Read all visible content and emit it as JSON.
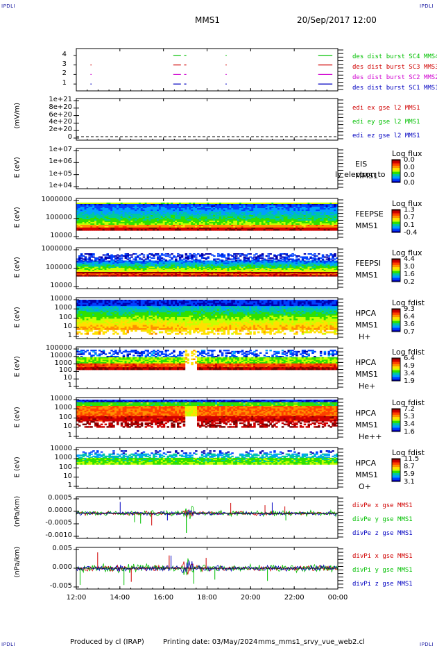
{
  "corners": {
    "tl": "IPDLI",
    "tr": "IPDLI",
    "bl": "IPDLI",
    "br": "IPDLI"
  },
  "header": {
    "spacecraft": "MMS1",
    "datetime": "20/Sep/2017 12:00"
  },
  "footer": {
    "produced": "Produced by cl (IRAP)",
    "printed": "Printing date: 03/May/2024",
    "script": "mms_mms1_srvy_vue_web2.cl"
  },
  "x_axis": {
    "ticks": [
      "12:00",
      "14:00",
      "16:00",
      "18:00",
      "20:00",
      "22:00",
      "00:00"
    ],
    "range_hours": [
      12,
      24
    ]
  },
  "colorscale": [
    "#7a0000",
    "#d00000",
    "#ff4000",
    "#ff9000",
    "#ffe000",
    "#c8ff00",
    "#30e000",
    "#00c8a0",
    "#00a0ff",
    "#0040ff",
    "#0000b0"
  ],
  "chart_data": [
    {
      "type": "scatter",
      "id": "burst",
      "ylabel": "",
      "ytick_labels": [
        "4",
        "3",
        "2",
        "1"
      ],
      "ylim": [
        0.5,
        4.5
      ],
      "series": [
        {
          "name": "des dist burst SC1 MMS1",
          "color": "#0000c0",
          "y": 1,
          "segments": [
            [
              12.65,
              12.7
            ],
            [
              16.45,
              16.8
            ],
            [
              16.95,
              17.05
            ],
            [
              18.85,
              18.9
            ],
            [
              23.1,
              23.75
            ]
          ]
        },
        {
          "name": "des dist burst SC2 MMS2",
          "color": "#d000d0",
          "y": 2,
          "segments": [
            [
              12.65,
              12.7
            ],
            [
              16.45,
              16.8
            ],
            [
              16.95,
              17.05
            ],
            [
              18.85,
              18.9
            ],
            [
              23.1,
              23.75
            ]
          ]
        },
        {
          "name": "des dist burst SC3 MMS3",
          "color": "#d00000",
          "y": 3,
          "segments": [
            [
              12.65,
              12.7
            ],
            [
              16.45,
              16.8
            ],
            [
              16.95,
              17.05
            ],
            [
              18.85,
              18.9
            ],
            [
              23.1,
              23.75
            ]
          ]
        },
        {
          "name": "des dist burst SC4 MMS4",
          "color": "#00c000",
          "y": 4,
          "segments": [
            [
              16.45,
              16.8
            ],
            [
              16.95,
              17.05
            ],
            [
              18.85,
              18.9
            ],
            [
              23.1,
              23.75
            ]
          ]
        }
      ]
    },
    {
      "type": "line",
      "id": "edi",
      "ylabel": "(mV/m)",
      "ytick_labels": [
        "1e+21",
        "8e+20",
        "6e+20",
        "4e+20",
        "2e+20",
        "0"
      ],
      "ylim": [
        0,
        1e+21
      ],
      "series": [
        {
          "name": "edi ex gse l2 MMS1",
          "color": "#d00000"
        },
        {
          "name": "edi ey gse l2 MMS1",
          "color": "#00c000"
        },
        {
          "name": "edi ez gse l2 MMS1",
          "color": "#0000c0"
        }
      ],
      "zero_line": true
    },
    {
      "type": "heatmap",
      "id": "eis",
      "ylabel": "E (eV)",
      "ytick_labels": [
        "1e+07",
        "1e+06",
        "1e+05",
        "1e+04"
      ],
      "ylim": [
        10000.0,
        10000000.0
      ],
      "instrument": [
        "EIS",
        "MMS1"
      ],
      "overlay_text": "ly electron to",
      "colorbar": {
        "title": "Log flux",
        "values": [
          "0.0",
          "0.0",
          "0.0",
          "0.0"
        ]
      },
      "empty": true
    },
    {
      "type": "heatmap",
      "id": "feepse",
      "ylabel": "E (eV)",
      "ytick_labels": [
        "1000000",
        "100000",
        "10000"
      ],
      "ylim": [
        10000,
        1000000
      ],
      "instrument": [
        "FEEPSE",
        "MMS1"
      ],
      "colorbar": {
        "title": "Log flux",
        "values": [
          "1.3",
          "0.7",
          "0.1",
          "-0.4"
        ]
      }
    },
    {
      "type": "heatmap",
      "id": "feepsi",
      "ylabel": "E (eV)",
      "ytick_labels": [
        "1000000",
        "100000",
        "10000"
      ],
      "ylim": [
        10000,
        1000000
      ],
      "instrument": [
        "FEEPSI",
        "MMS1"
      ],
      "colorbar": {
        "title": "Log flux",
        "values": [
          "4.4",
          "3.0",
          "1.6",
          "0.2"
        ]
      }
    },
    {
      "type": "heatmap",
      "id": "hpca_h",
      "ylabel": "E (eV)",
      "ytick_labels": [
        "10000",
        "1000",
        "100",
        "10",
        "1"
      ],
      "ylim": [
        1,
        30000
      ],
      "instrument": [
        "HPCA",
        "MMS1",
        "H+"
      ],
      "colorbar": {
        "title": "Log fdist",
        "values": [
          "9.3",
          "6.4",
          "3.6",
          "0.7"
        ]
      }
    },
    {
      "type": "heatmap",
      "id": "hpca_he",
      "ylabel": "E (eV)",
      "ytick_labels": [
        "100000",
        "10000",
        "1000",
        "100",
        "10",
        "1"
      ],
      "ylim": [
        1,
        100000
      ],
      "instrument": [
        "HPCA",
        "MMS1",
        "He+"
      ],
      "colorbar": {
        "title": "Log fdist",
        "values": [
          "6.4",
          "4.9",
          "3.4",
          "1.9"
        ]
      }
    },
    {
      "type": "heatmap",
      "id": "hpca_he2",
      "ylabel": "E (eV)",
      "ytick_labels": [
        "10000",
        "1000",
        "100",
        "10",
        "1"
      ],
      "ylim": [
        1,
        30000
      ],
      "instrument": [
        "HPCA",
        "MMS1",
        "He++"
      ],
      "colorbar": {
        "title": "Log fdist",
        "values": [
          "7.2",
          "5.3",
          "3.4",
          "1.6"
        ]
      }
    },
    {
      "type": "heatmap",
      "id": "hpca_o",
      "ylabel": "E (eV)",
      "ytick_labels": [
        "10000",
        "1000",
        "100",
        "10",
        "1"
      ],
      "ylim": [
        1,
        30000
      ],
      "instrument": [
        "HPCA",
        "MMS1",
        "O+"
      ],
      "colorbar": {
        "title": "Log fdist",
        "values": [
          "11.5",
          "8.7",
          "5.9",
          "3.1"
        ]
      }
    },
    {
      "type": "line",
      "id": "divpe",
      "ylabel": "(nPa/km)",
      "ytick_labels": [
        "0.0005",
        "0.0000",
        "-0.0005",
        "-0.0010"
      ],
      "ylim": [
        -0.0013,
        0.0008
      ],
      "series": [
        {
          "name": "divPe x gse MMS1",
          "color": "#d00000"
        },
        {
          "name": "divPe y gse MMS1",
          "color": "#00c000"
        },
        {
          "name": "divPe z gse MMS1",
          "color": "#0000c0"
        }
      ]
    },
    {
      "type": "line",
      "id": "divpi",
      "ylabel": "(nPa/km)",
      "ytick_labels": [
        "0.005",
        "0.000",
        "-0.005"
      ],
      "ylim": [
        -0.0075,
        0.0075
      ],
      "series": [
        {
          "name": "divPi x gse MMS1",
          "color": "#d00000"
        },
        {
          "name": "divPi y gse MMS1",
          "color": "#00c000"
        },
        {
          "name": "divPi z gse MMS1",
          "color": "#0000c0"
        }
      ]
    }
  ]
}
